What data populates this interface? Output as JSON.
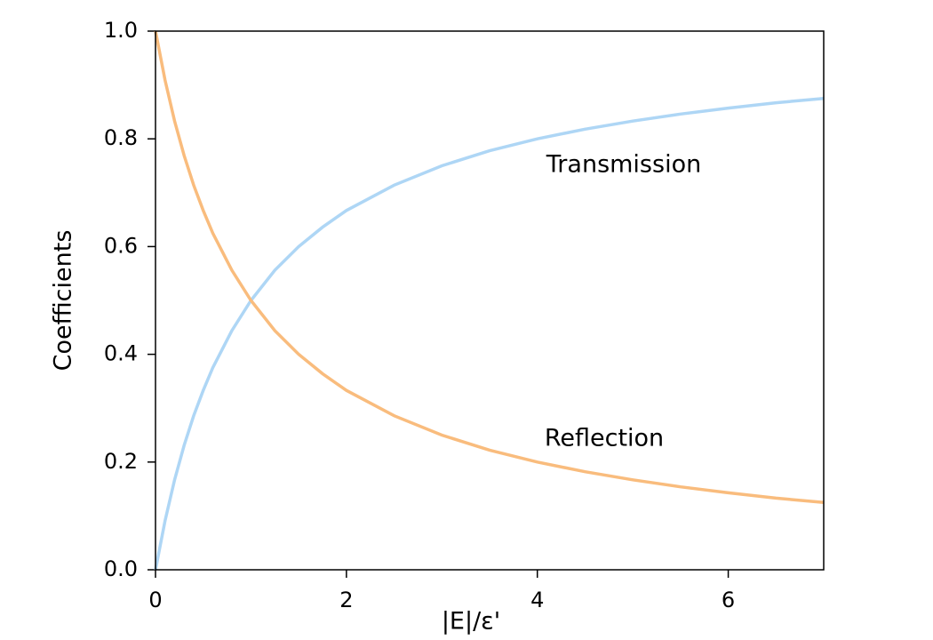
{
  "chart_data": {
    "type": "line",
    "x_label": "|E|/ε'",
    "y_label": "Coefficients",
    "x": [
      0,
      0.1,
      0.2,
      0.3,
      0.4,
      0.5,
      0.6,
      0.8,
      1,
      1.25,
      1.5,
      1.75,
      2,
      2.5,
      3,
      3.5,
      4,
      4.5,
      5,
      5.5,
      6,
      6.5,
      7
    ],
    "series": [
      {
        "name": "Transmission",
        "color": "#aed6f5",
        "values": [
          0,
          0.091,
          0.167,
          0.231,
          0.286,
          0.333,
          0.375,
          0.444,
          0.5,
          0.556,
          0.6,
          0.636,
          0.667,
          0.714,
          0.75,
          0.778,
          0.8,
          0.818,
          0.833,
          0.846,
          0.857,
          0.867,
          0.875
        ]
      },
      {
        "name": "Reflection",
        "color": "#f9bc7d",
        "values": [
          1,
          0.909,
          0.833,
          0.769,
          0.714,
          0.667,
          0.625,
          0.556,
          0.5,
          0.444,
          0.4,
          0.364,
          0.333,
          0.286,
          0.25,
          0.222,
          0.2,
          0.182,
          0.167,
          0.154,
          0.143,
          0.133,
          0.125
        ]
      }
    ],
    "xlim": [
      0,
      7
    ],
    "xticks": [
      0,
      2,
      4,
      6
    ],
    "ylim": [
      0,
      1
    ],
    "yticks": [
      {
        "value": 0,
        "label": "0.0"
      },
      0.2,
      0.4,
      0.6,
      0.8,
      {
        "value": 1,
        "label": "1.0"
      }
    ]
  }
}
